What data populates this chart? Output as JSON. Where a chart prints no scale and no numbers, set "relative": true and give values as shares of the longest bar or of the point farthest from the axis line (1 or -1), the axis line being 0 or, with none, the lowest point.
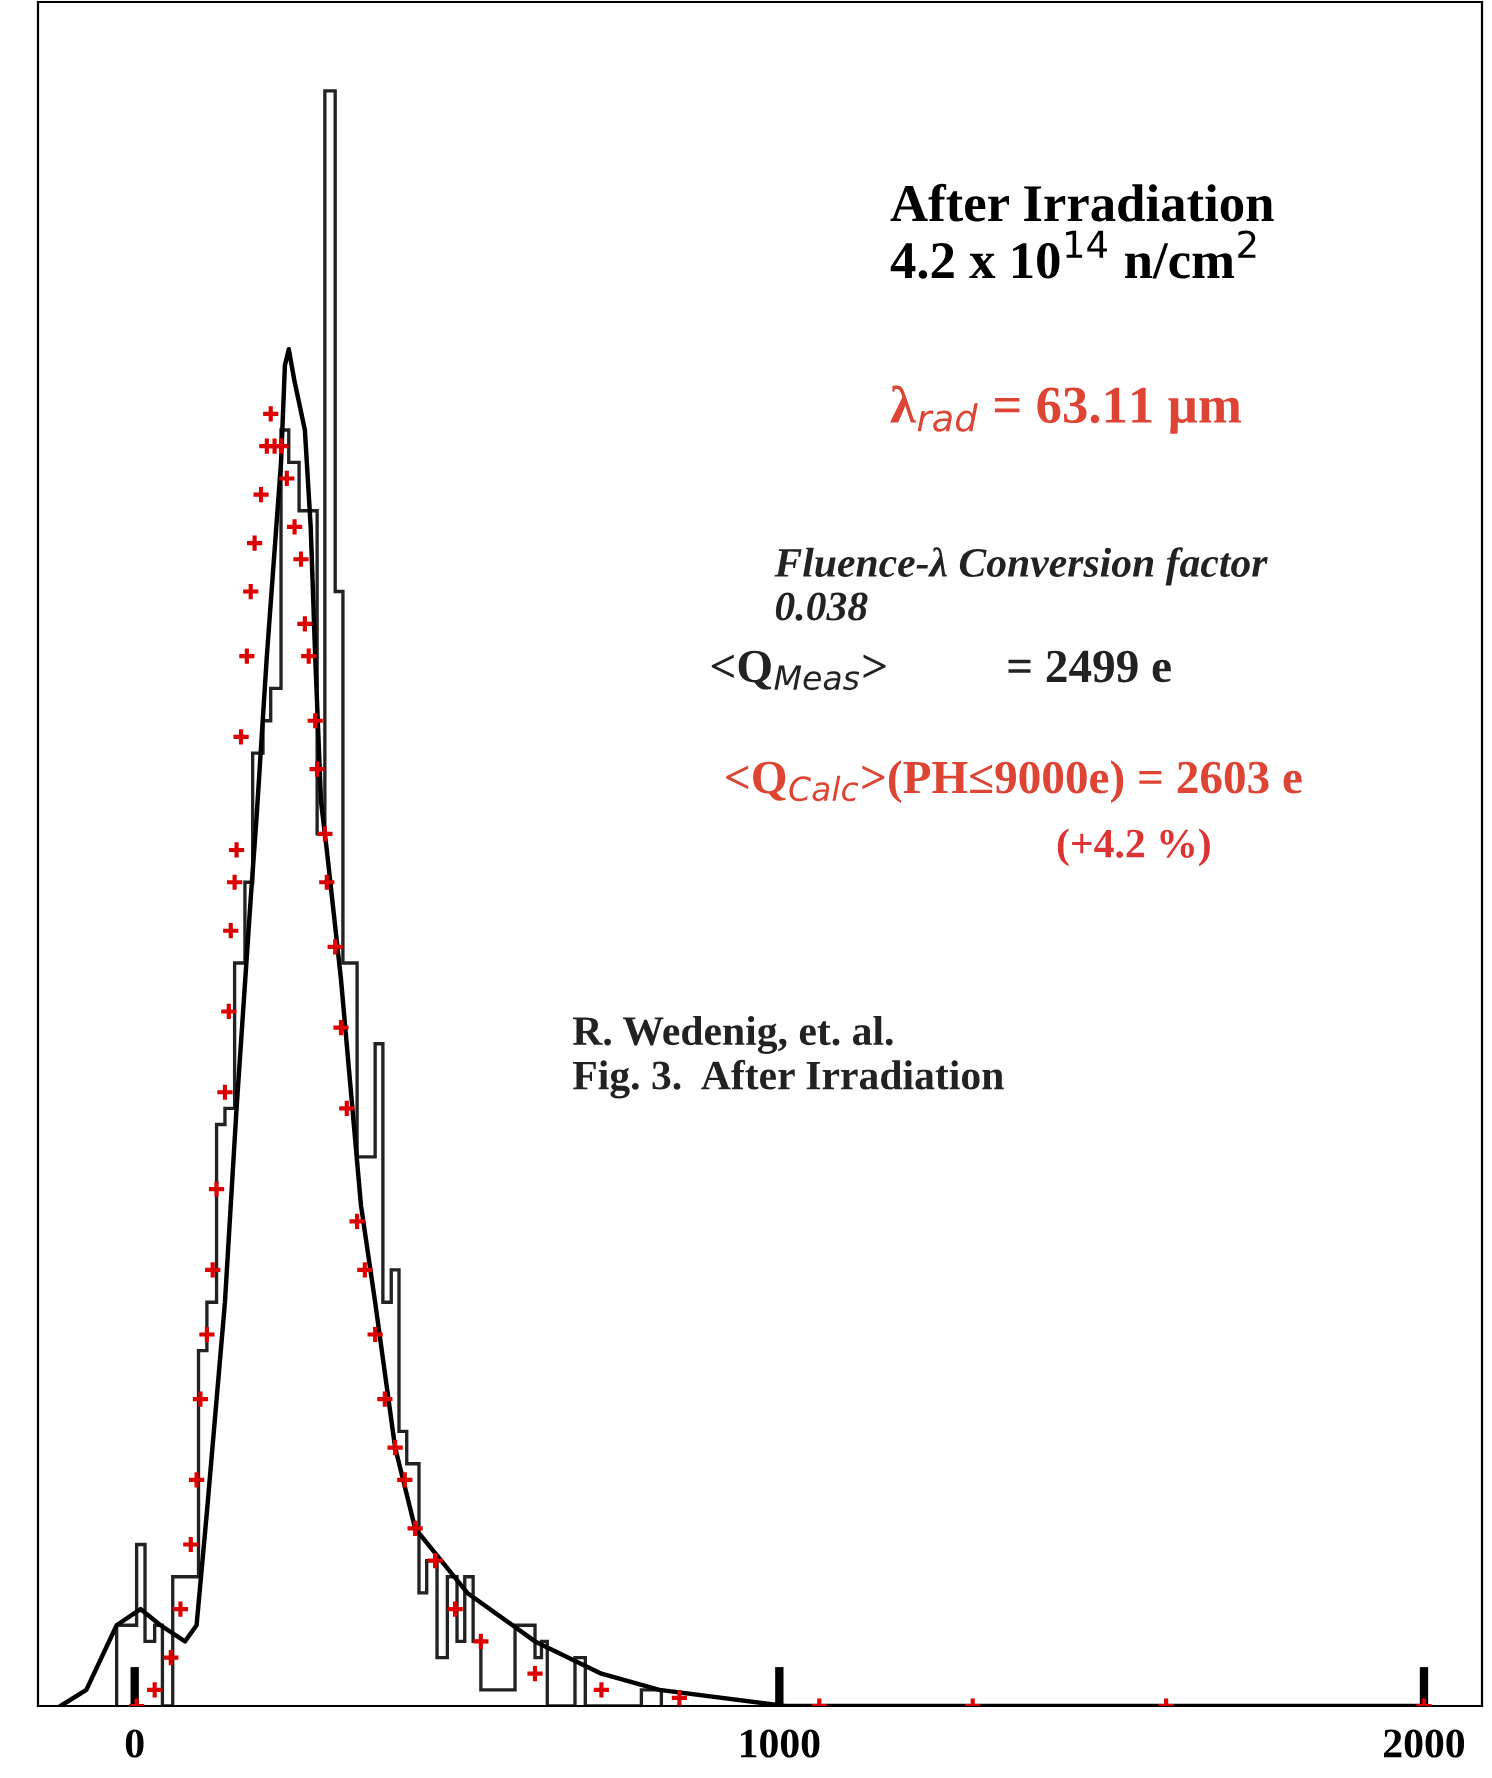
{
  "chart_data": {
    "type": "histogram",
    "relative": true,
    "xlim": [
      -150,
      2090
    ],
    "xticks": [
      0,
      1000,
      2000
    ],
    "tick_labels": "x",
    "grid": false,
    "legend": false,
    "series": [
      {
        "color": "#222222",
        "bins": [
          -28,
          3,
          16,
          31,
          43,
          59,
          99,
          112,
          127,
          140,
          155,
          171,
          183,
          199,
          211,
          227,
          239,
          255,
          267,
          283,
          295,
          311,
          323,
          345,
          373,
          385,
          398,
          410,
          422,
          441,
          453,
          469,
          485,
          500,
          512,
          525,
          537,
          590,
          621,
          631,
          640,
          683,
          699,
          786,
          817
        ],
        "values": [
          0.05,
          0.1,
          0.04,
          0.05,
          0,
          0.08,
          0.22,
          0.25,
          0.36,
          0.37,
          0.46,
          0.51,
          0.59,
          0.61,
          0.63,
          0.79,
          0.77,
          0.74,
          0.74,
          0.54,
          1.0,
          0.69,
          0.46,
          0.34,
          0.41,
          0.25,
          0.27,
          0.17,
          0.15,
          0.07,
          0.09,
          0.03,
          0.08,
          0.04,
          0.08,
          0.04,
          0.01,
          0.05,
          0.03,
          0.04,
          0,
          0.03,
          0.0,
          0.01
        ]
      },
      {
        "type": "line",
        "color": "#000000",
        "line_style": "solid",
        "marker": "none",
        "x": [
          -115,
          -75,
          -28,
          9,
          40,
          78,
          96,
          112,
          140,
          158,
          180,
          189,
          205,
          227,
          233,
          239,
          248,
          264,
          273,
          280,
          289,
          298,
          320,
          351,
          373,
          404,
          435,
          516,
          621,
          724,
          814,
          1009,
          1224,
          2000
        ],
        "values": [
          0,
          0.01,
          0.05,
          0.06,
          0.05,
          0.04,
          0.05,
          0.12,
          0.25,
          0.37,
          0.5,
          0.55,
          0.65,
          0.77,
          0.83,
          0.84,
          0.82,
          0.79,
          0.73,
          0.65,
          0.56,
          0.53,
          0.45,
          0.31,
          0.25,
          0.16,
          0.11,
          0.07,
          0.04,
          0.02,
          0.01,
          0.0,
          0.0,
          0.0
        ]
      },
      {
        "type": "scatter",
        "color": "#dd0000",
        "marker": "cross",
        "x": [
          3,
          31,
          56,
          71,
          87,
          96,
          102,
          112,
          121,
          127,
          140,
          146,
          149,
          155,
          158,
          165,
          174,
          180,
          186,
          196,
          205,
          211,
          217,
          227,
          236,
          248,
          258,
          264,
          270,
          280,
          283,
          295,
          298,
          311,
          320,
          329,
          345,
          357,
          373,
          388,
          404,
          419,
          435,
          466,
          497,
          537,
          621,
          724,
          845,
          1062,
          1300,
          1600,
          2000
        ],
        "values": [
          0,
          0.01,
          0.03,
          0.06,
          0.1,
          0.14,
          0.19,
          0.23,
          0.27,
          0.32,
          0.38,
          0.43,
          0.48,
          0.51,
          0.53,
          0.6,
          0.65,
          0.69,
          0.72,
          0.75,
          0.78,
          0.8,
          0.78,
          0.78,
          0.76,
          0.73,
          0.71,
          0.67,
          0.65,
          0.61,
          0.58,
          0.54,
          0.51,
          0.47,
          0.42,
          0.37,
          0.3,
          0.27,
          0.23,
          0.19,
          0.16,
          0.14,
          0.11,
          0.09,
          0.06,
          0.04,
          0.02,
          0.01,
          0.005,
          0.0,
          0.0,
          0.0,
          0.0
        ]
      }
    ],
    "annotations": [
      "After Irradiation",
      "4.2 x 10$^{14}$ n/cm$^{2}$",
      "λ$_{rad}$ = 63.11 µm",
      "Fluence-λ Conversion factor\n0.038",
      "<Q$_{Meas}$>          = 2499 e",
      "<Q$_{Calc}$>(PH≤9000e) = 2603 e",
      "(+4.2 %)",
      "R. Wedenig, et. al.\nFig. 3.  After Irradiation"
    ]
  }
}
